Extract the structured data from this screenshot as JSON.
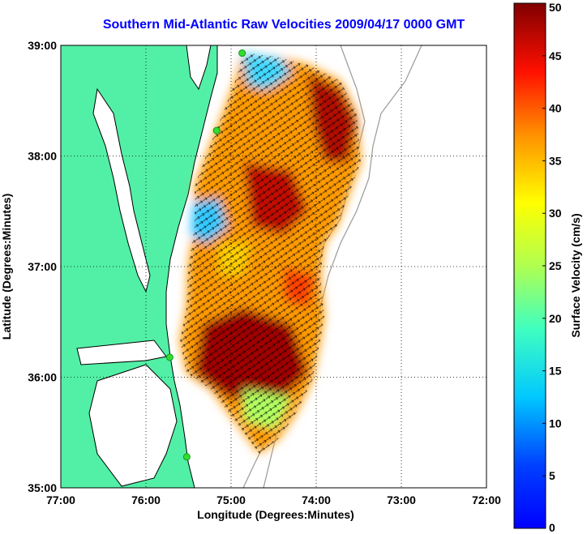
{
  "title": "Southern Mid-Atlantic Raw Velocities 2009/04/17 0000 GMT",
  "map": {
    "xlabel": "Longitude (Degrees:Minutes)",
    "ylabel": "Latitude (Degrees:Minutes)",
    "lon_range": [
      -77,
      -72
    ],
    "lat_range": [
      35,
      39
    ],
    "lon_ticks": [
      "77:00",
      "76:00",
      "75:00",
      "74:00",
      "73:00",
      "72:00"
    ],
    "lat_ticks": [
      "35:00",
      "36:00",
      "37:00",
      "38:00",
      "39:00"
    ],
    "land_color": "#52f0a6",
    "grid": true,
    "station_color": "#33dd33",
    "stations": [
      {
        "lon": -74.87,
        "lat": 38.93
      },
      {
        "lon": -75.17,
        "lat": 38.23
      },
      {
        "lon": -75.72,
        "lat": 36.18
      },
      {
        "lon": -75.52,
        "lat": 35.28
      }
    ]
  },
  "colorbar": {
    "label": "Surface Velocity (cm/s)",
    "min": 0,
    "max": 50,
    "ticks": [
      "0",
      "5",
      "10",
      "15",
      "20",
      "25",
      "30",
      "35",
      "40",
      "45",
      "50"
    ],
    "colormap": "jet"
  }
}
